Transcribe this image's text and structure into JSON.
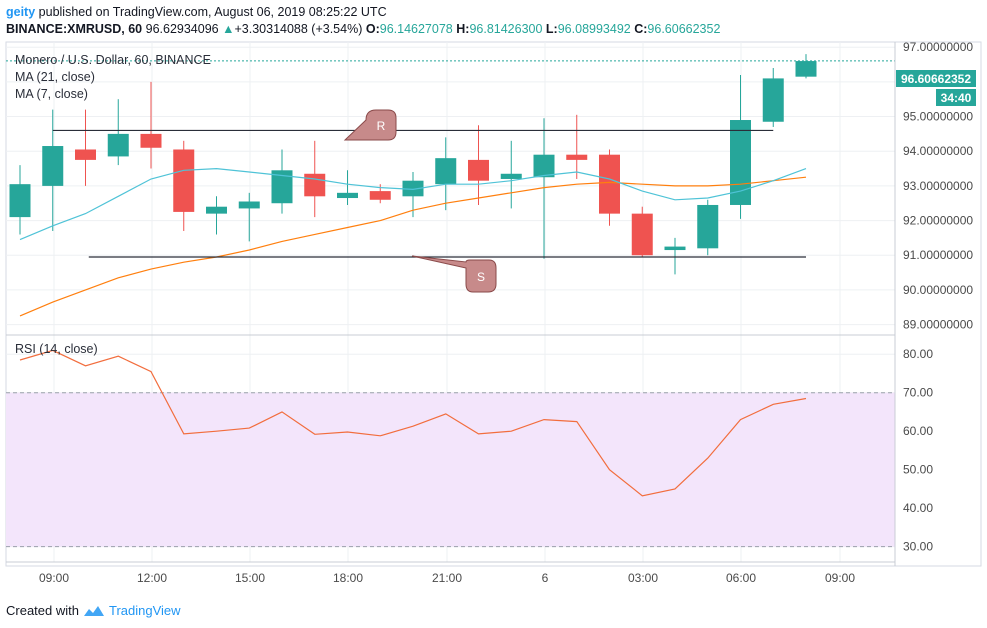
{
  "header": {
    "user": "geity",
    "published_text": "published on TradingView.com, August 06, 2019 08:25:22 UTC",
    "symbol": "BINANCE:XMRUSD, 60",
    "last_price": "96.62934096",
    "change": "+3.30314088 (+3.54%)",
    "change_arrow": "▲",
    "o_label": "O:",
    "o_value": "96.14627078",
    "h_label": "H:",
    "h_value": "96.81426300",
    "l_label": "L:",
    "l_value": "96.08993492",
    "c_label": "C:",
    "c_value": "96.60662352"
  },
  "legend": {
    "title": "Monero / U.S. Dollar, 60, BINANCE",
    "ma21": "MA (21, close)",
    "ma7": "MA (7, close)",
    "rsi": "RSI (14, close)"
  },
  "annotations": {
    "resistance": "R",
    "support": "S"
  },
  "price_tag": {
    "price": "96.60662352",
    "countdown": "34:40"
  },
  "footer": {
    "created_with": "Created with",
    "brand": "TradingView"
  },
  "colors": {
    "up": "#26a69a",
    "down": "#ef5350",
    "ma21": "#ff7f0e",
    "ma7": "#4fc3d7",
    "rsi": "#f26d3d",
    "rsi_band": "#f3e5fb",
    "grid": "#eef0f3",
    "axis_text": "#4a4a4a"
  },
  "chart_data": [
    {
      "type": "candlestick",
      "title": "Monero / U.S. Dollar, 60, BINANCE",
      "x_ticks": [
        "09:00",
        "12:00",
        "15:00",
        "18:00",
        "21:00",
        "6",
        "03:00",
        "06:00",
        "09:00"
      ],
      "y_ticks": [
        "89.00000000",
        "90.00000000",
        "91.00000000",
        "92.00000000",
        "93.00000000",
        "94.00000000",
        "95.00000000",
        "96.00000000",
        "97.00000000"
      ],
      "ylim": [
        88.7,
        97.15
      ],
      "candles": [
        {
          "o": 92.1,
          "h": 93.6,
          "l": 91.6,
          "c": 93.05
        },
        {
          "o": 93.0,
          "h": 95.2,
          "l": 91.7,
          "c": 94.15
        },
        {
          "o": 94.05,
          "h": 95.2,
          "l": 93.0,
          "c": 93.75
        },
        {
          "o": 93.85,
          "h": 95.5,
          "l": 93.6,
          "c": 94.5
        },
        {
          "o": 94.5,
          "h": 96.0,
          "l": 93.5,
          "c": 94.1
        },
        {
          "o": 94.05,
          "h": 94.3,
          "l": 91.7,
          "c": 92.25
        },
        {
          "o": 92.2,
          "h": 92.7,
          "l": 91.6,
          "c": 92.4
        },
        {
          "o": 92.35,
          "h": 92.8,
          "l": 91.4,
          "c": 92.55
        },
        {
          "o": 92.5,
          "h": 94.05,
          "l": 92.2,
          "c": 93.45
        },
        {
          "o": 93.35,
          "h": 94.3,
          "l": 92.1,
          "c": 92.7
        },
        {
          "o": 92.65,
          "h": 93.45,
          "l": 92.45,
          "c": 92.8
        },
        {
          "o": 92.85,
          "h": 93.05,
          "l": 92.5,
          "c": 92.6
        },
        {
          "o": 92.7,
          "h": 93.4,
          "l": 92.1,
          "c": 93.15
        },
        {
          "o": 93.05,
          "h": 94.4,
          "l": 92.3,
          "c": 93.8
        },
        {
          "o": 93.75,
          "h": 94.75,
          "l": 92.45,
          "c": 93.15
        },
        {
          "o": 93.2,
          "h": 94.3,
          "l": 92.35,
          "c": 93.35
        },
        {
          "o": 93.25,
          "h": 94.95,
          "l": 90.9,
          "c": 93.9
        },
        {
          "o": 93.9,
          "h": 95.05,
          "l": 93.2,
          "c": 93.75
        },
        {
          "o": 93.9,
          "h": 94.05,
          "l": 91.85,
          "c": 92.2
        },
        {
          "o": 92.2,
          "h": 92.4,
          "l": 90.95,
          "c": 91.0
        },
        {
          "o": 91.15,
          "h": 91.5,
          "l": 90.45,
          "c": 91.25
        },
        {
          "o": 91.2,
          "h": 92.6,
          "l": 91.0,
          "c": 92.45
        },
        {
          "o": 92.45,
          "h": 96.2,
          "l": 92.05,
          "c": 94.9
        },
        {
          "o": 94.85,
          "h": 96.4,
          "l": 94.7,
          "c": 96.1
        },
        {
          "o": 96.15,
          "h": 96.8,
          "l": 96.1,
          "c": 96.6
        }
      ],
      "ma21": [
        89.25,
        89.65,
        90.0,
        90.35,
        90.6,
        90.8,
        90.95,
        91.15,
        91.4,
        91.6,
        91.8,
        92.0,
        92.3,
        92.5,
        92.65,
        92.8,
        92.95,
        93.05,
        93.1,
        93.05,
        93.0,
        93.0,
        93.05,
        93.15,
        93.25
      ],
      "ma7": [
        91.45,
        91.85,
        92.2,
        92.7,
        93.2,
        93.45,
        93.5,
        93.4,
        93.3,
        93.2,
        93.05,
        92.95,
        92.9,
        93.05,
        93.05,
        93.15,
        93.3,
        93.4,
        93.2,
        92.85,
        92.6,
        92.65,
        92.85,
        93.15,
        93.5
      ],
      "lines": [
        {
          "name": "R",
          "y": 94.6,
          "from_candle": 1,
          "to_candle": 23
        },
        {
          "name": "S",
          "y": 90.95,
          "from_candle": 2.1,
          "to_candle": 24
        }
      ],
      "last_price": 96.60662352
    },
    {
      "type": "line",
      "title": "RSI (14, close)",
      "y_ticks": [
        "30.00",
        "40.00",
        "50.00",
        "60.00",
        "70.00",
        "80.00"
      ],
      "ylim": [
        26,
        85
      ],
      "band": [
        30,
        70
      ],
      "values": [
        78.5,
        81.0,
        77.0,
        79.5,
        75.5,
        59.3,
        60.0,
        60.8,
        65.0,
        59.2,
        59.8,
        58.8,
        61.3,
        64.5,
        59.3,
        60.0,
        63.0,
        62.5,
        50.0,
        43.2,
        45.0,
        53.0,
        63.0,
        67.0,
        68.5
      ]
    }
  ]
}
